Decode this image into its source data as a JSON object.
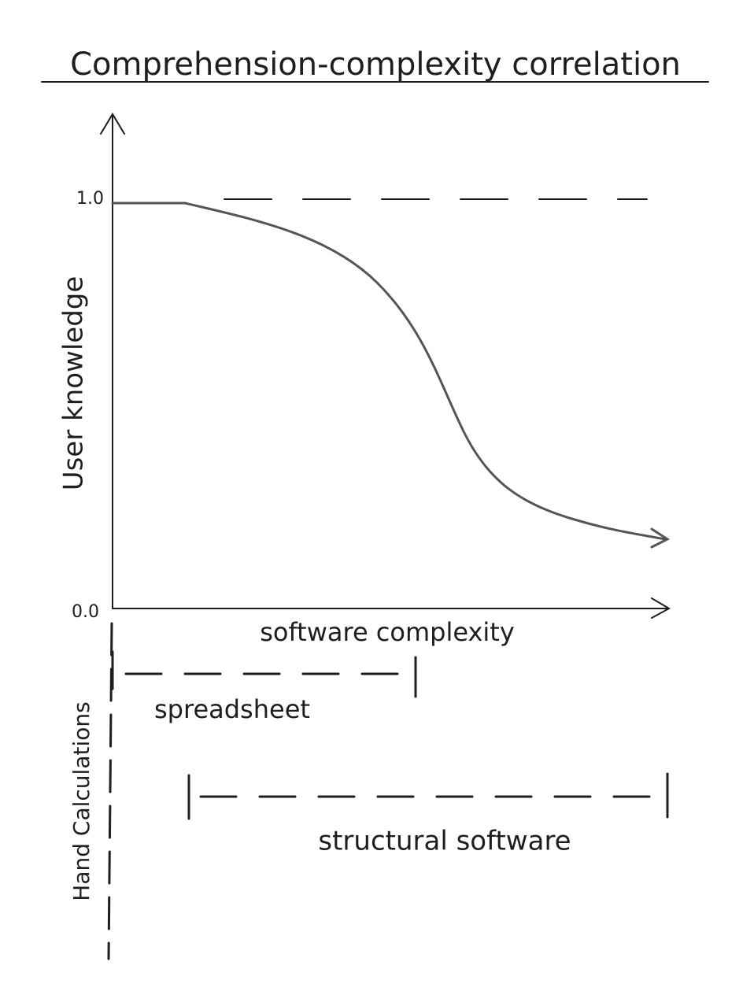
{
  "title": "Comprehension-complexity correlation",
  "axes": {
    "y_label": "User knowledge",
    "x_label": "software complexity",
    "y_ticks": [
      "1.0",
      "0.0"
    ]
  },
  "ranges": [
    {
      "label": "Hand Calculations"
    },
    {
      "label": "spreadsheet"
    },
    {
      "label": "structural software"
    }
  ]
}
